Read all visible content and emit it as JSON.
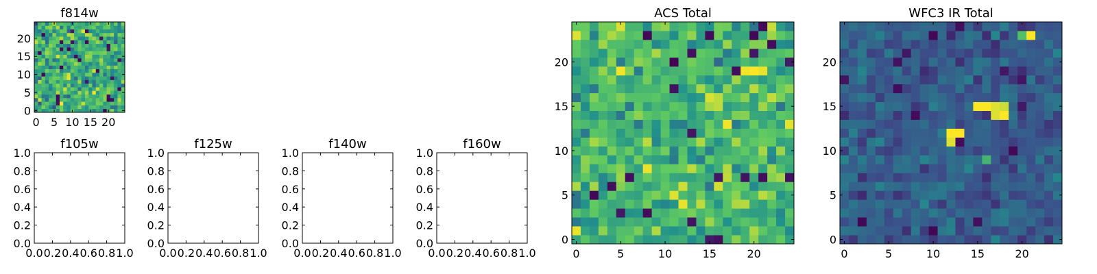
{
  "colors": {
    "cmap": [
      "#440154",
      "#3b528b",
      "#21918c",
      "#5ec962",
      "#fde725"
    ]
  },
  "chart_data": [
    {
      "id": "f814w",
      "type": "heatmap",
      "title": "f814w",
      "grid": [
        25,
        25
      ],
      "xlim": [
        -0.5,
        24.5
      ],
      "ylim": [
        -0.5,
        24.5
      ],
      "xticks": [
        0,
        5,
        10,
        15,
        20
      ],
      "yticks": [
        0,
        5,
        10,
        15,
        20
      ],
      "xtick_labels": [
        "0",
        "5",
        "10",
        "15",
        "20"
      ],
      "ytick_labels": [
        "0",
        "5",
        "10",
        "15",
        "20"
      ],
      "value_range": [
        0,
        1
      ],
      "value_center": 0.62,
      "value_spread": 0.17,
      "seed": 11,
      "peaks": []
    },
    {
      "id": "f105w",
      "type": "heatmap",
      "title": "f105w",
      "empty": true,
      "xlim": [
        0,
        1
      ],
      "ylim": [
        0,
        1
      ],
      "xticks": [
        0,
        0.2,
        0.4,
        0.6,
        0.8,
        1.0
      ],
      "yticks": [
        0,
        0.2,
        0.4,
        0.6,
        0.8,
        1.0
      ],
      "xtick_labels": [
        "0.0",
        "0.2",
        "0.4",
        "0.6",
        "0.8",
        "1.0"
      ],
      "ytick_labels": [
        "0.0",
        "0.2",
        "0.4",
        "0.6",
        "0.8",
        "1.0"
      ]
    },
    {
      "id": "f125w",
      "type": "heatmap",
      "title": "f125w",
      "empty": true,
      "xlim": [
        0,
        1
      ],
      "ylim": [
        0,
        1
      ],
      "xticks": [
        0,
        0.2,
        0.4,
        0.6,
        0.8,
        1.0
      ],
      "yticks": [
        0,
        0.2,
        0.4,
        0.6,
        0.8,
        1.0
      ],
      "xtick_labels": [
        "0.0",
        "0.2",
        "0.4",
        "0.6",
        "0.8",
        "1.0"
      ],
      "ytick_labels": [
        "0.0",
        "0.2",
        "0.4",
        "0.6",
        "0.8",
        "1.0"
      ]
    },
    {
      "id": "f140w",
      "type": "heatmap",
      "title": "f140w",
      "empty": true,
      "xlim": [
        0,
        1
      ],
      "ylim": [
        0,
        1
      ],
      "xticks": [
        0,
        0.2,
        0.4,
        0.6,
        0.8,
        1.0
      ],
      "yticks": [
        0,
        0.2,
        0.4,
        0.6,
        0.8,
        1.0
      ],
      "xtick_labels": [
        "0.0",
        "0.2",
        "0.4",
        "0.6",
        "0.8",
        "1.0"
      ],
      "ytick_labels": [
        "0.0",
        "0.2",
        "0.4",
        "0.6",
        "0.8",
        "1.0"
      ]
    },
    {
      "id": "f160w",
      "type": "heatmap",
      "title": "f160w",
      "empty": true,
      "xlim": [
        0,
        1
      ],
      "ylim": [
        0,
        1
      ],
      "xticks": [
        0,
        0.2,
        0.4,
        0.6,
        0.8,
        1.0
      ],
      "yticks": [
        0,
        0.2,
        0.4,
        0.6,
        0.8,
        1.0
      ],
      "xtick_labels": [
        "0.0",
        "0.2",
        "0.4",
        "0.6",
        "0.8",
        "1.0"
      ],
      "ytick_labels": [
        "0.0",
        "0.2",
        "0.4",
        "0.6",
        "0.8",
        "1.0"
      ]
    },
    {
      "id": "acs-total",
      "type": "heatmap",
      "title": "ACS Total",
      "grid": [
        25,
        25
      ],
      "xlim": [
        -0.5,
        24.5
      ],
      "ylim": [
        -0.5,
        24.5
      ],
      "xticks": [
        0,
        5,
        10,
        15,
        20
      ],
      "yticks": [
        0,
        5,
        10,
        15,
        20
      ],
      "xtick_labels": [
        "0",
        "5",
        "10",
        "15",
        "20"
      ],
      "ytick_labels": [
        "0",
        "5",
        "10",
        "15",
        "20"
      ],
      "value_range": [
        0,
        1
      ],
      "value_center": 0.66,
      "value_spread": 0.15,
      "seed": 23,
      "peaks": [
        [
          19,
          19,
          0.98
        ],
        [
          20,
          19,
          1.0
        ],
        [
          21,
          19,
          0.97
        ],
        [
          17,
          13,
          0.98
        ],
        [
          12,
          4,
          0.97
        ],
        [
          11,
          5,
          0.95
        ],
        [
          8,
          8,
          0.97
        ],
        [
          0,
          1,
          0.97
        ],
        [
          0,
          23,
          0.95
        ],
        [
          24,
          13,
          0.96
        ]
      ]
    },
    {
      "id": "wfc3-ir-total",
      "type": "heatmap",
      "title": "WFC3 IR Total",
      "grid": [
        25,
        25
      ],
      "xlim": [
        -0.5,
        24.5
      ],
      "ylim": [
        -0.5,
        24.5
      ],
      "xticks": [
        0,
        5,
        10,
        15,
        20
      ],
      "yticks": [
        0,
        5,
        10,
        15,
        20
      ],
      "xtick_labels": [
        "0",
        "5",
        "10",
        "15",
        "20"
      ],
      "ytick_labels": [
        "0",
        "5",
        "10",
        "15",
        "20"
      ],
      "value_range": [
        0,
        1
      ],
      "value_center": 0.3,
      "value_spread": 0.09,
      "seed": 37,
      "peaks": [
        [
          15,
          15,
          1.0
        ],
        [
          16,
          15,
          1.0
        ],
        [
          17,
          15,
          0.95
        ],
        [
          18,
          15,
          0.92
        ],
        [
          17,
          14,
          0.95
        ],
        [
          18,
          14,
          1.0
        ],
        [
          12,
          12,
          1.0
        ],
        [
          13,
          12,
          1.0
        ],
        [
          12,
          11,
          0.95
        ],
        [
          21,
          23,
          1.0
        ],
        [
          20,
          23,
          0.7
        ],
        [
          16,
          9,
          0.65
        ]
      ]
    }
  ]
}
